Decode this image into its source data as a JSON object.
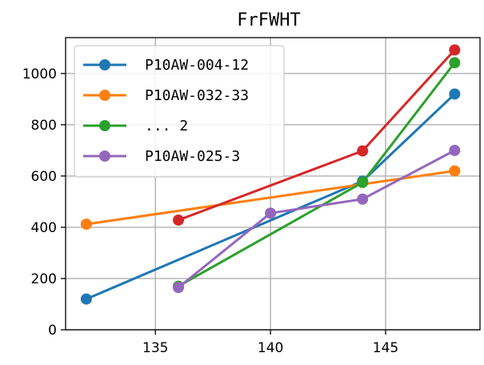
{
  "chart_data": {
    "type": "line",
    "title": "FrFWHT",
    "xlabel": "",
    "ylabel": "",
    "xlim": [
      131.1,
      149.1
    ],
    "ylim": [
      0,
      1140
    ],
    "xticks": [
      135,
      140,
      145
    ],
    "yticks": [
      0,
      200,
      400,
      600,
      800,
      1000
    ],
    "grid": true,
    "legend_position": "top-left",
    "series": [
      {
        "name": "P10AW-004-12",
        "color": "#1f77b4",
        "x": [
          132,
          144,
          148
        ],
        "y": [
          120,
          580,
          920
        ]
      },
      {
        "name": "P10AW-032-33",
        "color": "#ff7f0e",
        "x": [
          132,
          148
        ],
        "y": [
          412,
          620
        ]
      },
      {
        "name": "",
        "color": "#d62728",
        "x": [
          136,
          144,
          148
        ],
        "y": [
          428,
          698,
          1092
        ]
      },
      {
        "name": "... 2",
        "color": "#2ca02c",
        "x": [
          136,
          144,
          148
        ],
        "y": [
          170,
          575,
          1042
        ]
      },
      {
        "name": "P10AW-025-3",
        "color": "#9467bd",
        "x": [
          136,
          140,
          144,
          148
        ],
        "y": [
          165,
          455,
          510,
          700
        ]
      }
    ],
    "legend_order": [
      0,
      1,
      3,
      4
    ]
  }
}
